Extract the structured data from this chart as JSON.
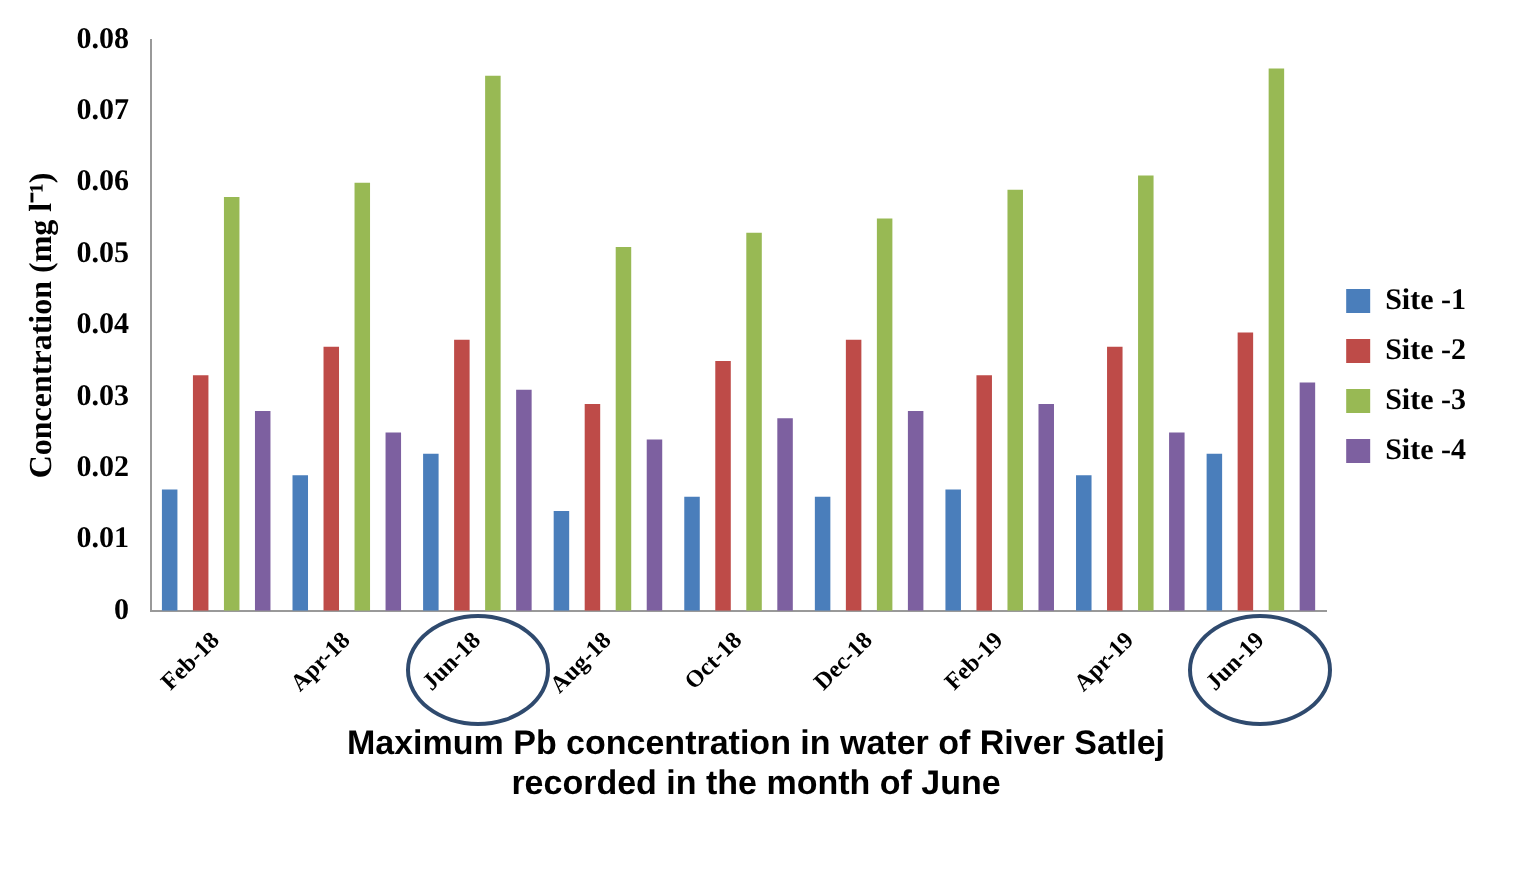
{
  "chart_data": {
    "type": "bar",
    "title": "Maximum Pb concentration in water of River Satlej recorded in the month of June",
    "ylabel": "Concentration (mg l⁻¹)",
    "categories": [
      "Feb-18",
      "Apr-18",
      "Jun-18",
      "Aug-18",
      "Oct-18",
      "Dec-18",
      "Feb-19",
      "Apr-19",
      "Jun-19"
    ],
    "series": [
      {
        "name": "Site -1",
        "color": "#4a7ebb",
        "values": [
          0.017,
          0.019,
          0.022,
          0.014,
          0.016,
          0.016,
          0.017,
          0.019,
          0.022
        ]
      },
      {
        "name": "Site -2",
        "color": "#be4b48",
        "values": [
          0.033,
          0.037,
          0.038,
          0.029,
          0.035,
          0.038,
          0.033,
          0.037,
          0.039
        ]
      },
      {
        "name": "Site -3",
        "color": "#98b954",
        "values": [
          0.058,
          0.06,
          0.075,
          0.051,
          0.053,
          0.055,
          0.059,
          0.061,
          0.076
        ]
      },
      {
        "name": "Site -4",
        "color": "#7d60a0",
        "values": [
          0.028,
          0.025,
          0.031,
          0.024,
          0.027,
          0.028,
          0.029,
          0.025,
          0.032
        ]
      }
    ],
    "ylim": [
      0,
      0.08
    ],
    "yticks": [
      0,
      0.01,
      0.02,
      0.03,
      0.04,
      0.05,
      0.06,
      0.07,
      0.08
    ],
    "grid": false,
    "legend": "right"
  }
}
